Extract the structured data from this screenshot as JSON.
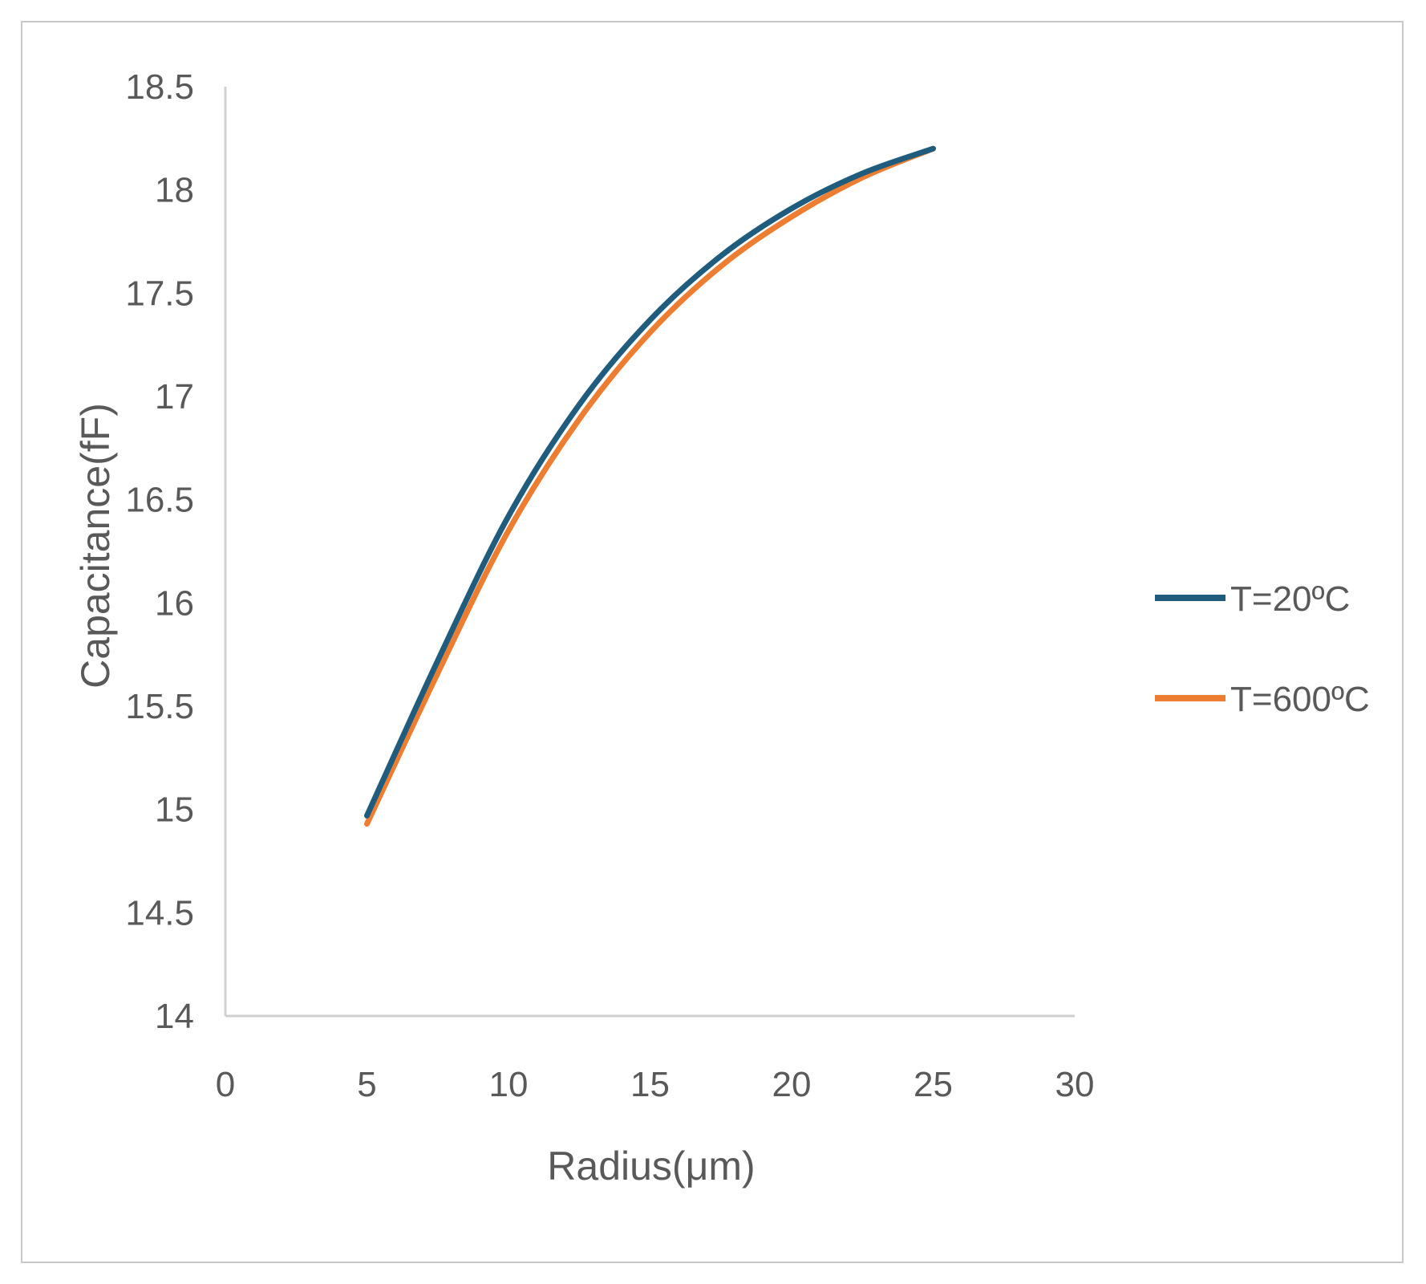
{
  "chart_data": {
    "type": "line",
    "title": "",
    "xlabel": "Radius(μm)",
    "ylabel": "Capacitance(fF)",
    "xlim": [
      0,
      30
    ],
    "ylim": [
      14,
      18.5
    ],
    "x_ticks": [
      "0",
      "5",
      "10",
      "15",
      "20",
      "25",
      "30"
    ],
    "y_ticks": [
      "14",
      "14.5",
      "15",
      "15.5",
      "16",
      "16.5",
      "17",
      "17.5",
      "18",
      "18.5"
    ],
    "x_tick_values": [
      0,
      5,
      10,
      15,
      20,
      25,
      30
    ],
    "y_tick_values": [
      14,
      14.5,
      15,
      15.5,
      16,
      16.5,
      17,
      17.5,
      18,
      18.5
    ],
    "grid": false,
    "legend_position": "right",
    "x": [
      5,
      7.5,
      10,
      12.5,
      15,
      17.5,
      20,
      22.5,
      25
    ],
    "series": [
      {
        "name": "T=20ºC",
        "color": "#1f5c7e",
        "values": [
          14.97,
          15.72,
          16.42,
          16.96,
          17.37,
          17.68,
          17.91,
          18.08,
          18.2
        ]
      },
      {
        "name": "T=600ºC",
        "color": "#ed7d31",
        "values": [
          14.93,
          15.66,
          16.35,
          16.89,
          17.31,
          17.63,
          17.87,
          18.06,
          18.2
        ]
      }
    ]
  }
}
